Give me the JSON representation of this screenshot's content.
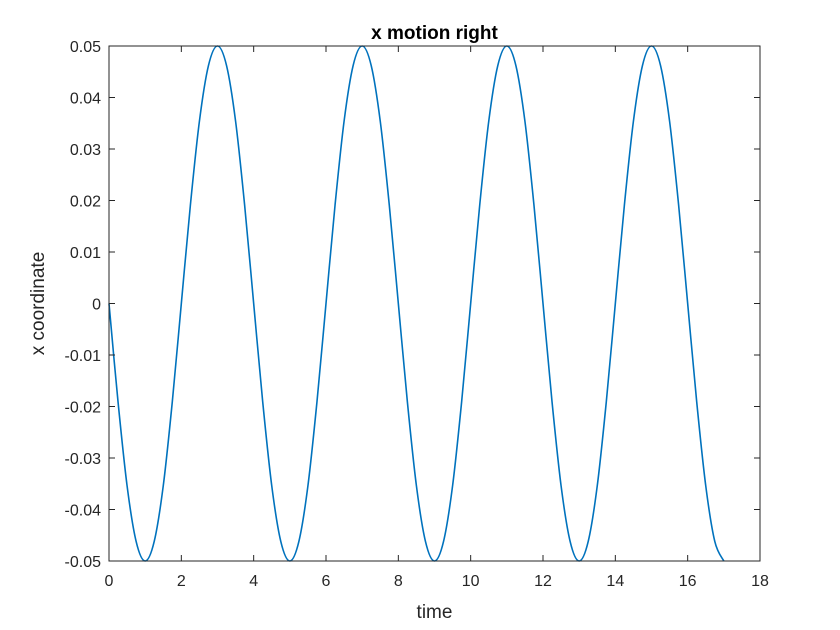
{
  "chart_data": {
    "type": "line",
    "title": "x motion right",
    "xlabel": "time",
    "ylabel": "x coordinate",
    "xlim": [
      0,
      18
    ],
    "ylim": [
      -0.05,
      0.05
    ],
    "xticks": [
      0,
      2,
      4,
      6,
      8,
      10,
      12,
      14,
      16,
      18
    ],
    "xtick_labels": [
      "0",
      "2",
      "4",
      "6",
      "8",
      "10",
      "12",
      "14",
      "16",
      "18"
    ],
    "yticks": [
      -0.05,
      -0.04,
      -0.03,
      -0.02,
      -0.01,
      0,
      0.01,
      0.02,
      0.03,
      0.04,
      0.05
    ],
    "ytick_labels": [
      "-0.05",
      "-0.04",
      "-0.03",
      "-0.02",
      "-0.01",
      "0",
      "0.01",
      "0.02",
      "0.03",
      "0.04",
      "0.05"
    ],
    "grid": false,
    "series": [
      {
        "color": "#0072BD",
        "x": [
          0,
          0.25,
          0.5,
          0.75,
          1,
          1.25,
          1.5,
          1.75,
          2,
          2.25,
          2.5,
          2.75,
          3,
          3.25,
          3.5,
          3.75,
          4,
          4.25,
          4.5,
          4.75,
          5,
          5.25,
          5.5,
          5.75,
          6,
          6.25,
          6.5,
          6.75,
          7,
          7.25,
          7.5,
          7.75,
          8,
          8.25,
          8.5,
          8.75,
          9,
          9.25,
          9.5,
          9.75,
          10,
          10.25,
          10.5,
          10.75,
          11,
          11.25,
          11.5,
          11.75,
          12,
          12.25,
          12.5,
          12.75,
          13,
          13.25,
          13.5,
          13.75,
          14,
          14.25,
          14.5,
          14.75,
          15,
          15.25,
          15.5,
          15.75,
          16,
          16.25,
          16.5,
          16.75,
          17
        ],
        "y": [
          0,
          -0.0191,
          -0.0354,
          -0.0462,
          -0.05,
          -0.0462,
          -0.0354,
          -0.0191,
          0,
          0.0191,
          0.0354,
          0.0462,
          0.05,
          0.0462,
          0.0354,
          0.0191,
          0,
          -0.0191,
          -0.0354,
          -0.0462,
          -0.05,
          -0.0462,
          -0.0354,
          -0.0191,
          0,
          0.0191,
          0.0354,
          0.0462,
          0.05,
          0.0462,
          0.0354,
          0.0191,
          0,
          -0.0191,
          -0.0354,
          -0.0462,
          -0.05,
          -0.0462,
          -0.0354,
          -0.0191,
          0,
          0.0191,
          0.0354,
          0.0462,
          0.05,
          0.0462,
          0.0354,
          0.0191,
          0,
          -0.0191,
          -0.0354,
          -0.0462,
          -0.05,
          -0.0462,
          -0.0354,
          -0.0191,
          0,
          0.0191,
          0.0354,
          0.0462,
          0.05,
          0.0462,
          0.0354,
          0.0191,
          0,
          -0.0191,
          -0.0354,
          -0.0462,
          -0.05
        ]
      }
    ]
  }
}
